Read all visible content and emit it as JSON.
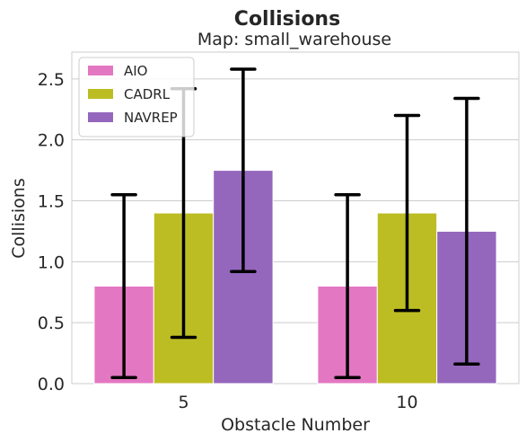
{
  "chart_data": {
    "type": "bar",
    "suptitle": "Collisions",
    "title": "Map: small_warehouse",
    "xlabel": "Obstacle Number",
    "ylabel": "Collisions",
    "ylim": [
      0,
      2.72
    ],
    "yticks": [
      "0.0",
      "0.5",
      "1.0",
      "1.5",
      "2.0",
      "2.5"
    ],
    "categories": [
      "5",
      "10"
    ],
    "grid": true,
    "legend_position": "top-left",
    "series": [
      {
        "name": "AIO",
        "color": "#e377c2",
        "values": [
          0.8,
          0.8
        ],
        "err_low": [
          0.05,
          0.05
        ],
        "err_high": [
          1.55,
          1.55
        ]
      },
      {
        "name": "CADRL",
        "color": "#bcbd22",
        "values": [
          1.4,
          1.4
        ],
        "err_low": [
          0.38,
          0.6
        ],
        "err_high": [
          2.42,
          2.2
        ]
      },
      {
        "name": "NAVREP",
        "color": "#9467bd",
        "values": [
          1.75,
          1.25
        ],
        "err_low": [
          0.92,
          0.16
        ],
        "err_high": [
          2.58,
          2.34
        ]
      }
    ]
  }
}
